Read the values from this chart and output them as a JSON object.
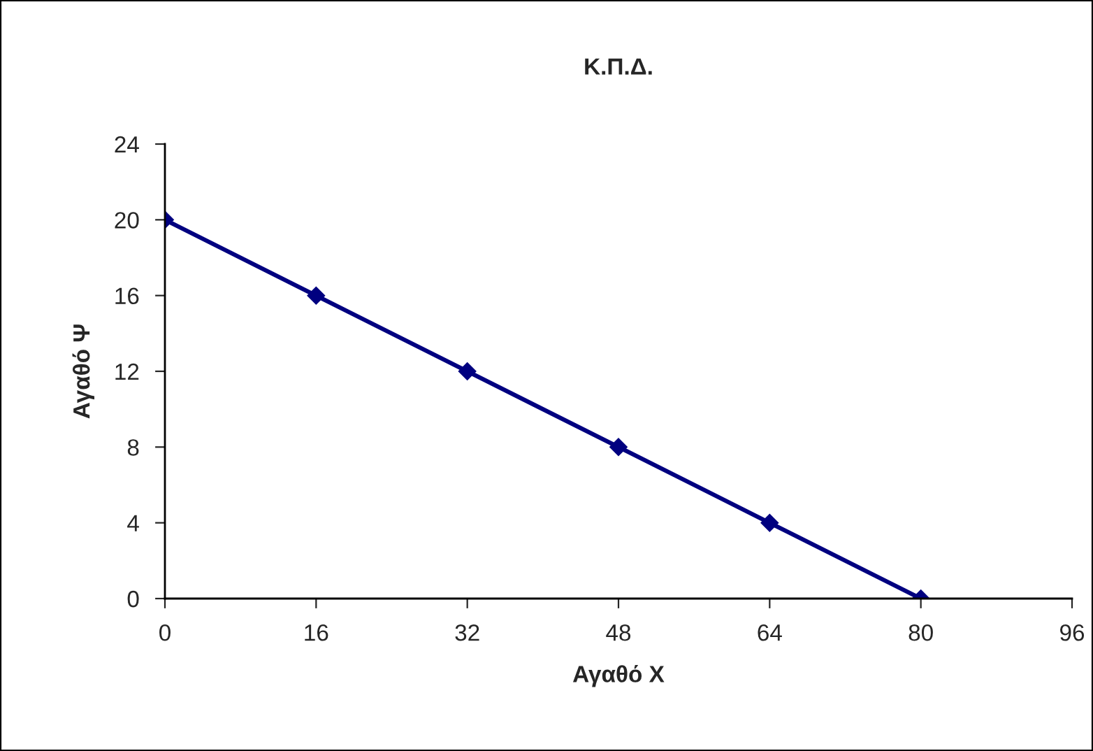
{
  "chart_data": {
    "type": "line",
    "title": "Κ.Π.Δ.",
    "xlabel": "Αγαθό Χ",
    "ylabel": "Αγαθό Ψ",
    "x": [
      0,
      16,
      32,
      48,
      64,
      80
    ],
    "series": [
      {
        "color": "#000080",
        "values": [
          20,
          16,
          12,
          8,
          4,
          0
        ]
      }
    ],
    "xlim": [
      0,
      96
    ],
    "xticks": [
      0,
      16,
      32,
      48,
      64,
      80,
      96
    ],
    "ylim": [
      0,
      24
    ],
    "yticks": [
      0,
      4,
      8,
      12,
      16,
      20,
      24
    ],
    "marker": "diamond",
    "line_style": "solid",
    "grid": false,
    "legend": false
  }
}
